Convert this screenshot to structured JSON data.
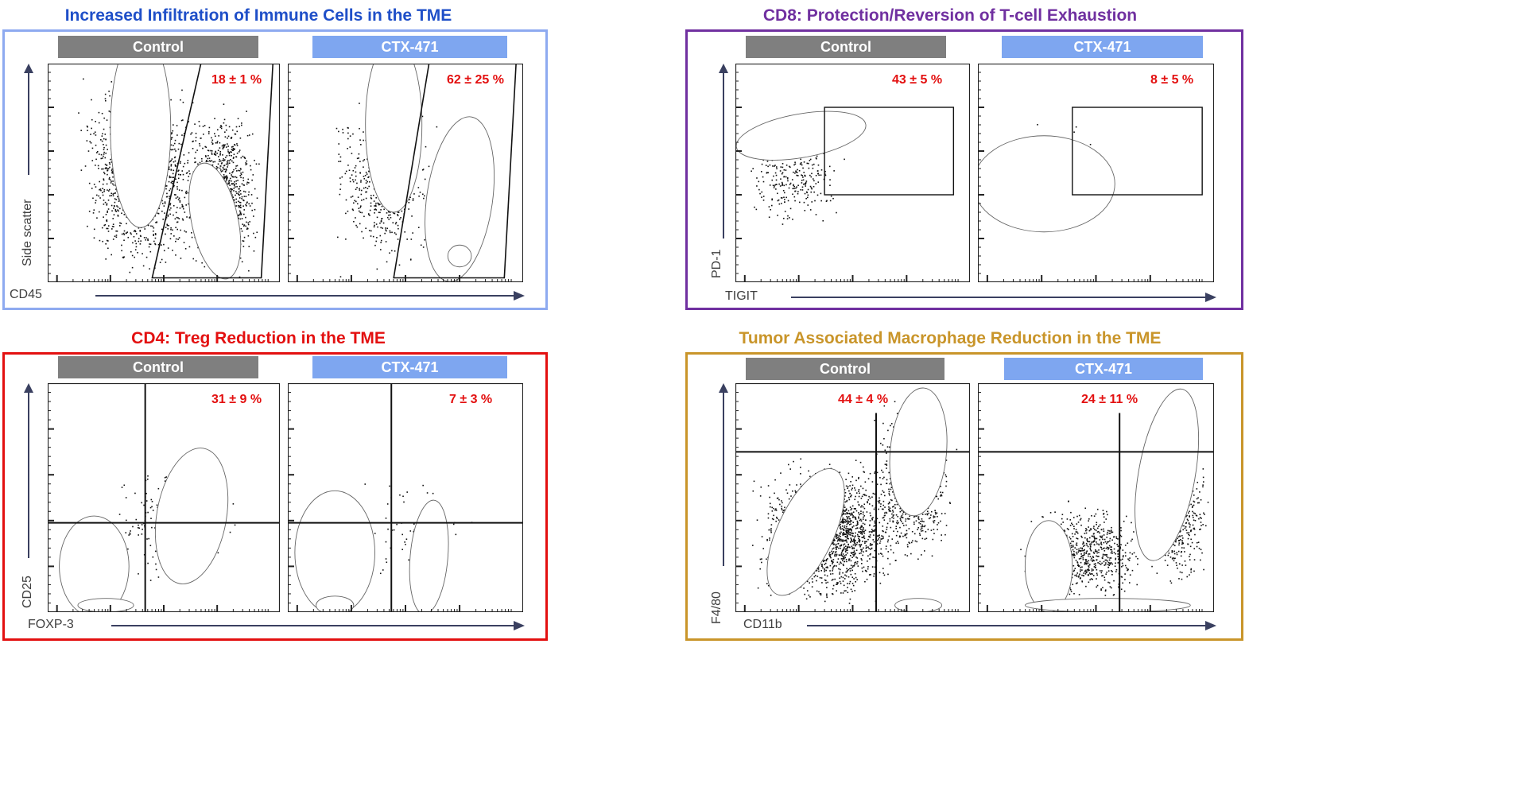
{
  "colors": {
    "blue_title": "#1f4fc8",
    "purple_title": "#7030a0",
    "red_title": "#e31010",
    "gold_title": "#c9952a",
    "control_bar": "#7f7f7f",
    "ctx_bar": "#7ea6f0",
    "percent_text": "#e31010"
  },
  "groups": {
    "control": "Control",
    "treatment": "CTX-471"
  },
  "chart_data": [
    {
      "type": "contour",
      "title": "Increased Infiltration of Immune Cells in the TME",
      "xlabel": "CD45",
      "ylabel": "Side scatter",
      "gate": "polygon",
      "panels": [
        {
          "group": "Control",
          "value": "18 ± 1 %"
        },
        {
          "group": "CTX-471",
          "value": "62 ± 25 %"
        }
      ]
    },
    {
      "type": "contour",
      "title": "CD8: Protection/Reversion of T-cell Exhaustion",
      "xlabel": "TIGIT",
      "ylabel": "PD-1",
      "gate": "rectangle",
      "panels": [
        {
          "group": "Control",
          "value": "43 ± 5 %"
        },
        {
          "group": "CTX-471",
          "value": "8 ± 5 %"
        }
      ]
    },
    {
      "type": "contour",
      "title": "CD4: Treg Reduction in the TME",
      "xlabel": "FOXP-3",
      "ylabel": "CD25",
      "gate": "quadrant",
      "panels": [
        {
          "group": "Control",
          "value": "31 ± 9 %"
        },
        {
          "group": "CTX-471",
          "value": "7 ± 3 %"
        }
      ]
    },
    {
      "type": "contour",
      "title": "Tumor Associated Macrophage Reduction in the TME",
      "xlabel": "CD11b",
      "ylabel": "F4/80",
      "gate": "quadrant",
      "panels": [
        {
          "group": "Control",
          "value": "44 ± 4 %"
        },
        {
          "group": "CTX-471",
          "value": "24 ± 11 %"
        }
      ]
    }
  ]
}
